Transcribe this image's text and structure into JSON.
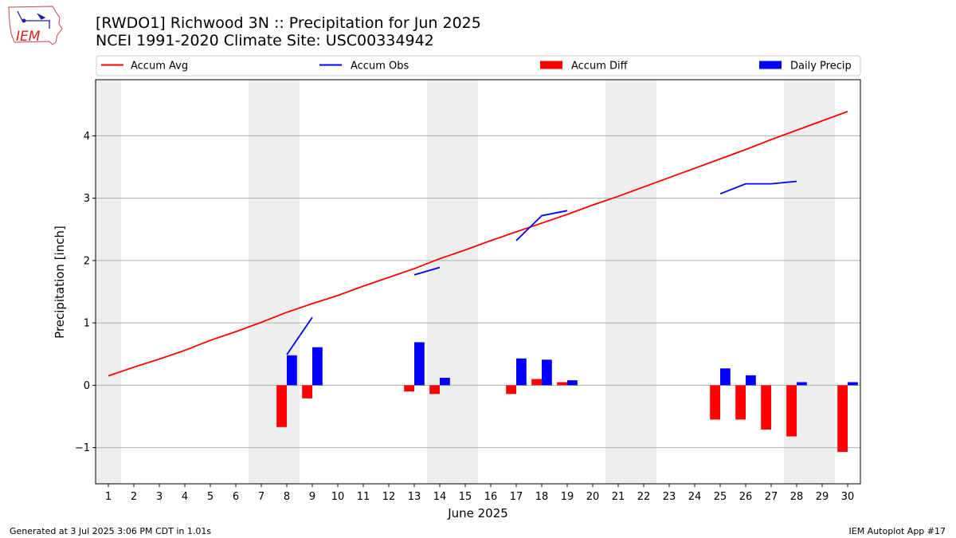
{
  "header": {
    "title_line1": "[RWDO1] Richwood 3N :: Precipitation for Jun 2025",
    "title_line2": "NCEI 1991-2020 Climate Site: USC00334942",
    "logo_text": "IEM"
  },
  "footer": {
    "generated": "Generated at 3 Jul 2025 3:06 PM CDT in 1.01s",
    "app": "IEM Autoplot App #17"
  },
  "colors": {
    "accum_avg": "#ff0000",
    "accum_obs": "#0000ff",
    "accum_diff": "#ff0000",
    "daily_precip": "#0000ff",
    "weekend_shade": "#eeeeee",
    "grid": "#b0b0b0"
  },
  "chart_data": {
    "type": "bar",
    "xlabel": "June 2025",
    "ylabel": "Precipitation [inch]",
    "xlim": [
      0.5,
      30.5
    ],
    "ylim": [
      -1.58,
      4.9
    ],
    "yticks": [
      -1,
      0,
      1,
      2,
      3,
      4
    ],
    "ytick_labels": [
      "−1",
      "0",
      "1",
      "2",
      "3",
      "4"
    ],
    "x_ticks": [
      1,
      2,
      3,
      4,
      5,
      6,
      7,
      8,
      9,
      10,
      11,
      12,
      13,
      14,
      15,
      16,
      17,
      18,
      19,
      20,
      21,
      22,
      23,
      24,
      25,
      26,
      27,
      28,
      29,
      30
    ],
    "grid": "horizontal",
    "weekend_spans": [
      [
        0.5,
        1.5
      ],
      [
        6.5,
        8.5
      ],
      [
        13.5,
        15.5
      ],
      [
        20.5,
        22.5
      ],
      [
        27.5,
        29.5
      ]
    ],
    "legend": {
      "placement": "top",
      "entries": [
        {
          "label": "Accum Avg",
          "kind": "line",
          "color": "#ff0000"
        },
        {
          "label": "Accum Obs",
          "kind": "line",
          "color": "#0000ff"
        },
        {
          "label": "Accum Diff",
          "kind": "bar",
          "color": "#ff0000"
        },
        {
          "label": "Daily Precip",
          "kind": "bar",
          "color": "#0000ff"
        }
      ]
    },
    "series": [
      {
        "name": "Accum Avg",
        "type": "line",
        "x": [
          1,
          2,
          3,
          4,
          5,
          6,
          7,
          8,
          9,
          10,
          11,
          12,
          13,
          14,
          15,
          16,
          17,
          18,
          19,
          20,
          21,
          22,
          23,
          24,
          25,
          26,
          27,
          28,
          29,
          30
        ],
        "values": [
          0.15,
          0.29,
          0.42,
          0.56,
          0.72,
          0.86,
          1.01,
          1.17,
          1.31,
          1.44,
          1.59,
          1.73,
          1.87,
          2.03,
          2.17,
          2.32,
          2.46,
          2.6,
          2.74,
          2.89,
          3.03,
          3.18,
          3.33,
          3.48,
          3.63,
          3.78,
          3.94,
          4.09,
          4.24,
          4.39
        ]
      },
      {
        "name": "Accum Obs",
        "type": "line",
        "segments": [
          {
            "x": [
              8,
              9
            ],
            "values": [
              0.49,
              1.09
            ]
          },
          {
            "x": [
              13,
              14
            ],
            "values": [
              1.77,
              1.89
            ]
          },
          {
            "x": [
              17,
              18,
              19
            ],
            "values": [
              2.32,
              2.72,
              2.8
            ]
          },
          {
            "x": [
              25,
              26,
              27,
              28
            ],
            "values": [
              3.07,
              3.23,
              3.23,
              3.27
            ]
          }
        ]
      },
      {
        "name": "Accum Diff",
        "type": "bar",
        "x": [
          8,
          9,
          13,
          14,
          17,
          18,
          19,
          25,
          26,
          27,
          28,
          30
        ],
        "values": [
          -0.67,
          -0.21,
          -0.1,
          -0.14,
          -0.14,
          0.1,
          0.05,
          -0.55,
          -0.55,
          -0.71,
          -0.82,
          -1.07
        ]
      },
      {
        "name": "Daily Precip",
        "type": "bar",
        "x": [
          8,
          9,
          13,
          14,
          17,
          18,
          19,
          25,
          26,
          28,
          30
        ],
        "values": [
          0.48,
          0.61,
          0.69,
          0.12,
          0.43,
          0.41,
          0.08,
          0.27,
          0.16,
          0.05,
          0.05
        ]
      }
    ]
  }
}
